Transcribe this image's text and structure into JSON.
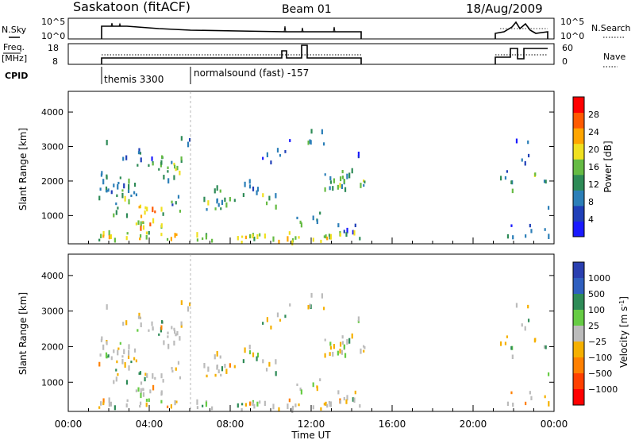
{
  "header": {
    "station": "Saskatoon (fitACF)",
    "beam": "Beam 01",
    "date": "18/Aug/2009"
  },
  "side_labels": {
    "nsky": "N.Sky",
    "freq_line1": "Freq.",
    "freq_line2": "[MHz]",
    "cpid": "CPID",
    "nsearch": "N.Search",
    "nave": "Nave"
  },
  "nsky_ticks": [
    "10^5",
    "10^0"
  ],
  "freq_ticks": [
    "18",
    "8"
  ],
  "nave_ticks": [
    "60",
    "0"
  ],
  "cpid_labels": [
    "themis 3300",
    "normalsound (fast) -157"
  ],
  "colors": {
    "power": [
      "#1a1aff",
      "#2040b8",
      "#2c7fb8",
      "#2e8b57",
      "#66bb44",
      "#f0e020",
      "#ffa500",
      "#ff5a00",
      "#ff0000"
    ],
    "velocity": [
      "#2a3fb0",
      "#2f5fbf",
      "#2e8b57",
      "#66cc44",
      "#bbbbbb",
      "#f5b000",
      "#ff8000",
      "#ff4000",
      "#ff0000"
    ]
  },
  "chart_data": [
    {
      "type": "heatmap",
      "panel": "power",
      "xlabel": "",
      "ylabel": "Slant Range [km]",
      "xlim": [
        "00:00",
        "00:00"
      ],
      "ylim": [
        180,
        4600
      ],
      "x_ticks": [
        "00:00",
        "04:00",
        "08:00",
        "12:00",
        "16:00",
        "20:00",
        "00:00"
      ],
      "y_ticks": [
        1000,
        2000,
        3000,
        4000
      ],
      "colorbar_label": "Power [dB]",
      "colorbar_ticks": [
        4,
        8,
        12,
        16,
        20,
        24,
        28
      ],
      "colorbar_range": [
        0,
        30
      ]
    },
    {
      "type": "heatmap",
      "panel": "velocity",
      "xlabel": "Time UT",
      "ylabel": "Slant Range [km]",
      "xlim": [
        "00:00",
        "00:00"
      ],
      "ylim": [
        180,
        4600
      ],
      "x_ticks": [
        "00:00",
        "04:00",
        "08:00",
        "12:00",
        "16:00",
        "20:00",
        "00:00"
      ],
      "y_ticks": [
        1000,
        2000,
        3000,
        4000
      ],
      "colorbar_label": "Velocity [m s-1]",
      "colorbar_ticks": [
        1000,
        500,
        100,
        25,
        -25,
        -100,
        -500,
        -1000
      ]
    }
  ],
  "tick_labels": {
    "x_ticks": [
      "00:00",
      "04:00",
      "08:00",
      "12:00",
      "16:00",
      "20:00",
      "00:00"
    ],
    "y_ticks": [
      "1000",
      "2000",
      "3000",
      "4000"
    ],
    "power_cb": [
      "4",
      "8",
      "12",
      "16",
      "20",
      "24",
      "28"
    ],
    "velocity_cb": [
      "1000",
      "500",
      "100",
      "25",
      "−25",
      "−100",
      "−500",
      "−1000"
    ]
  },
  "axis_text": {
    "ylabel": "Slant Range [km]",
    "xlabel": "Time UT",
    "power_cb_label": "Power [dB]",
    "velocity_cb_label": "Velocity [m s",
    "velocity_cb_sup": "-1",
    "velocity_cb_end": "]"
  }
}
